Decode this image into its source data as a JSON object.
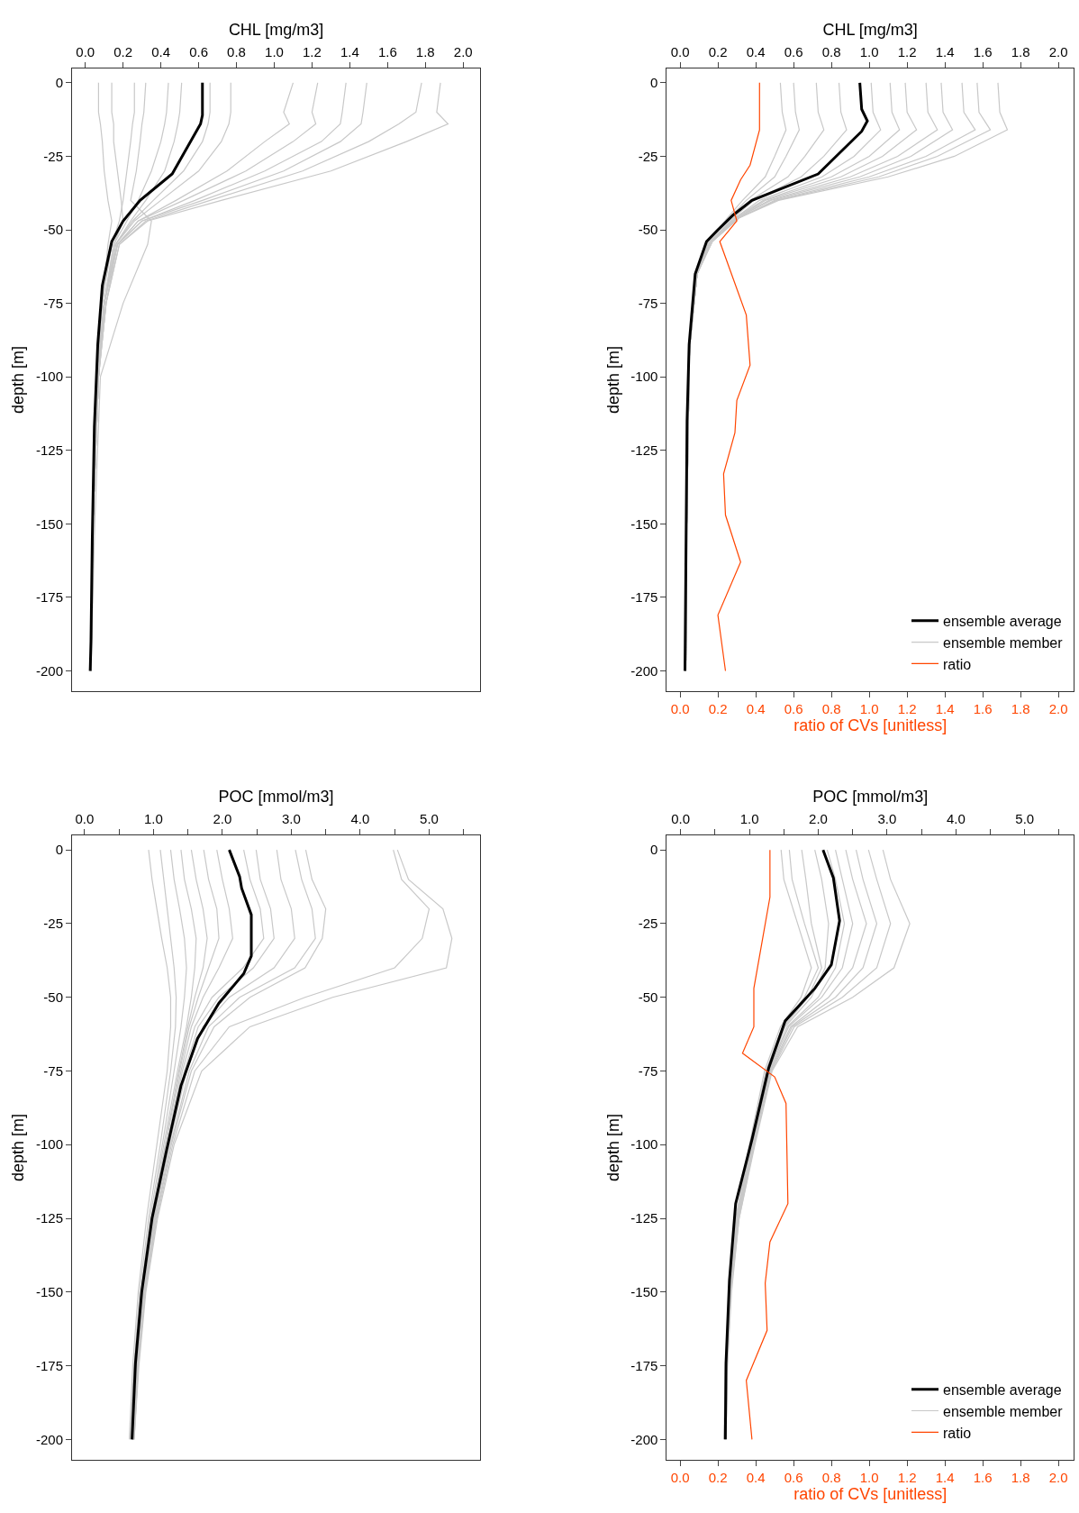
{
  "chart_data": [
    {
      "type": "line",
      "xlabel": "CHL [mg/m3]",
      "ylabel": "depth [m]",
      "xlim": [
        -0.07,
        2.09
      ],
      "ylim": [
        -207,
        5
      ],
      "legend": false,
      "line_style": "solid",
      "xticks": [
        {
          "value": 0,
          "label": "0.0"
        },
        0.2,
        0.4,
        0.6,
        0.8,
        {
          "value": 1,
          "label": "1.0"
        },
        1.2,
        1.4,
        1.6,
        1.8,
        {
          "value": 2,
          "label": "2.0"
        }
      ],
      "yticks": [
        0,
        -25,
        -50,
        -75,
        -100,
        -125,
        -150,
        -175,
        -200
      ],
      "series": [
        {
          "color": "#c8c8c8",
          "x": [
            0.07,
            0.07,
            0.08,
            0.09,
            0.1,
            0.12,
            0.14,
            0.12,
            0.09,
            0.06,
            0.04,
            0.03
          ],
          "values": [
            0,
            -10,
            -14,
            -20,
            -30,
            -40,
            -47,
            -55,
            -75,
            -100,
            -150,
            -200
          ]
        },
        {
          "color": "#c8c8c8",
          "x": [
            0.14,
            0.14,
            0.15,
            0.15,
            0.17,
            0.19,
            0.2,
            0.15,
            0.1,
            0.07,
            0.04,
            0.03
          ],
          "values": [
            0,
            -10,
            -14,
            -20,
            -30,
            -40,
            -47,
            -55,
            -75,
            -100,
            -150,
            -200
          ]
        },
        {
          "color": "#c8c8c8",
          "x": [
            0.26,
            0.26,
            0.25,
            0.24,
            0.22,
            0.2,
            0.18,
            0.14,
            0.09,
            0.06,
            0.04,
            0.03
          ],
          "values": [
            0,
            -10,
            -14,
            -20,
            -30,
            -40,
            -47,
            -55,
            -75,
            -100,
            -150,
            -200
          ]
        },
        {
          "color": "#c8c8c8",
          "x": [
            0.32,
            0.31,
            0.3,
            0.29,
            0.27,
            0.24,
            0.35,
            0.33,
            0.2,
            0.08,
            0.05,
            0.03
          ],
          "values": [
            0,
            -10,
            -14,
            -20,
            -30,
            -40,
            -47,
            -55,
            -75,
            -100,
            -150,
            -200
          ]
        },
        {
          "color": "#c8c8c8",
          "x": [
            0.44,
            0.43,
            0.42,
            0.4,
            0.35,
            0.28,
            0.22,
            0.15,
            0.1,
            0.06,
            0.04,
            0.03
          ],
          "values": [
            0,
            -10,
            -14,
            -20,
            -30,
            -40,
            -47,
            -55,
            -75,
            -100,
            -150,
            -200
          ]
        },
        {
          "color": "#c8c8c8",
          "x": [
            0.51,
            0.5,
            0.49,
            0.47,
            0.42,
            0.32,
            0.24,
            0.16,
            0.1,
            0.06,
            0.04,
            0.03
          ],
          "values": [
            0,
            -10,
            -14,
            -20,
            -30,
            -40,
            -47,
            -55,
            -75,
            -100,
            -150,
            -200
          ]
        },
        {
          "color": "#c8c8c8",
          "x": [
            0.66,
            0.66,
            0.65,
            0.62,
            0.52,
            0.36,
            0.25,
            0.16,
            0.1,
            0.07,
            0.04,
            0.03
          ],
          "values": [
            0,
            -10,
            -14,
            -20,
            -30,
            -40,
            -47,
            -55,
            -75,
            -100,
            -150,
            -200
          ]
        },
        {
          "color": "#c8c8c8",
          "x": [
            0.77,
            0.77,
            0.76,
            0.72,
            0.6,
            0.4,
            0.26,
            0.16,
            0.1,
            0.07,
            0.04,
            0.03
          ],
          "values": [
            0,
            -10,
            -14,
            -20,
            -30,
            -40,
            -47,
            -55,
            -75,
            -100,
            -150,
            -200
          ]
        },
        {
          "color": "#c8c8c8",
          "x": [
            1.1,
            1.05,
            1.08,
            0.95,
            0.75,
            0.48,
            0.28,
            0.17,
            0.1,
            0.07,
            0.04,
            0.03
          ],
          "values": [
            0,
            -10,
            -14,
            -20,
            -30,
            -40,
            -47,
            -55,
            -75,
            -100,
            -150,
            -200
          ]
        },
        {
          "color": "#c8c8c8",
          "x": [
            1.23,
            1.2,
            1.22,
            1.1,
            0.85,
            0.52,
            0.28,
            0.17,
            0.1,
            0.07,
            0.04,
            0.03
          ],
          "values": [
            0,
            -10,
            -14,
            -20,
            -30,
            -40,
            -47,
            -55,
            -75,
            -100,
            -150,
            -200
          ]
        },
        {
          "color": "#c8c8c8",
          "x": [
            1.38,
            1.36,
            1.35,
            1.25,
            0.95,
            0.58,
            0.3,
            0.17,
            0.1,
            0.07,
            0.04,
            0.03
          ],
          "values": [
            0,
            -10,
            -14,
            -20,
            -30,
            -40,
            -47,
            -55,
            -75,
            -100,
            -150,
            -200
          ]
        },
        {
          "color": "#c8c8c8",
          "x": [
            1.49,
            1.47,
            1.46,
            1.35,
            1.05,
            0.62,
            0.3,
            0.17,
            0.11,
            0.07,
            0.04,
            0.03
          ],
          "values": [
            0,
            -10,
            -14,
            -20,
            -30,
            -40,
            -47,
            -55,
            -75,
            -100,
            -150,
            -200
          ]
        },
        {
          "color": "#c8c8c8",
          "x": [
            1.78,
            1.75,
            1.66,
            1.5,
            1.15,
            0.66,
            0.32,
            0.18,
            0.11,
            0.07,
            0.04,
            0.03
          ],
          "values": [
            0,
            -10,
            -14,
            -20,
            -30,
            -40,
            -47,
            -55,
            -75,
            -100,
            -150,
            -200
          ]
        },
        {
          "color": "#c8c8c8",
          "x": [
            1.88,
            1.86,
            1.92,
            1.7,
            1.3,
            0.72,
            0.33,
            0.18,
            0.11,
            0.07,
            0.04,
            0.03
          ],
          "values": [
            0,
            -10,
            -14,
            -20,
            -30,
            -40,
            -47,
            -55,
            -75,
            -100,
            -150,
            -200
          ]
        },
        {
          "color": "#000000",
          "x": [
            0.62,
            0.62,
            0.61,
            0.46,
            0.29,
            0.2,
            0.14,
            0.09,
            0.066,
            0.048,
            0.037,
            0.03,
            0.026
          ],
          "values": [
            0,
            -11,
            -14,
            -31,
            -40,
            -47,
            -54,
            -69,
            -89,
            -117,
            -155,
            -190,
            -200
          ]
        }
      ]
    },
    {
      "type": "line",
      "xlabel": "CHL [mg/m3]",
      "ylabel": "depth [m]",
      "x2label": "ratio of CVs [unitless]",
      "xlim": [
        -0.07,
        2.08
      ],
      "ylim": [
        -207,
        5
      ],
      "x2lim": [
        -0.07,
        2.08
      ],
      "legend": "bottom right",
      "line_style": "solid",
      "xticks": [
        {
          "value": 0,
          "label": "0.0"
        },
        0.2,
        0.4,
        0.6,
        0.8,
        {
          "value": 1,
          "label": "1.0"
        },
        1.2,
        1.4,
        1.6,
        1.8,
        {
          "value": 2,
          "label": "2.0"
        }
      ],
      "x2ticks": [
        {
          "value": 0,
          "label": "0.0"
        },
        0.2,
        0.4,
        0.6,
        0.8,
        {
          "value": 1,
          "label": "1.0"
        },
        1.2,
        1.4,
        1.6,
        1.8,
        {
          "value": 2,
          "label": "2.0"
        }
      ],
      "yticks": [
        0,
        -25,
        -50,
        -75,
        -100,
        -125,
        -150,
        -175,
        -200
      ],
      "series": [
        {
          "name": "ensemble member",
          "color": "#c8c8c8",
          "x": [
            0.53,
            0.54,
            0.56,
            0.5,
            0.45,
            0.33,
            0.25,
            0.15,
            0.09,
            0.05,
            0.035,
            0.03
          ],
          "values": [
            0,
            -10,
            -16,
            -25,
            -32,
            -40,
            -46,
            -54,
            -65,
            -90,
            -150,
            -200
          ]
        },
        {
          "color": "#c8c8c8",
          "x": [
            0.6,
            0.61,
            0.63,
            0.56,
            0.5,
            0.35,
            0.26,
            0.15,
            0.09,
            0.05,
            0.035,
            0.03
          ],
          "values": [
            0,
            -10,
            -16,
            -25,
            -32,
            -40,
            -46,
            -54,
            -65,
            -90,
            -150,
            -200
          ]
        },
        {
          "color": "#c8c8c8",
          "x": [
            0.72,
            0.73,
            0.76,
            0.66,
            0.57,
            0.37,
            0.27,
            0.15,
            0.09,
            0.05,
            0.035,
            0.03
          ],
          "values": [
            0,
            -10,
            -16,
            -25,
            -32,
            -40,
            -46,
            -54,
            -65,
            -90,
            -150,
            -200
          ]
        },
        {
          "color": "#c8c8c8",
          "x": [
            0.84,
            0.85,
            0.88,
            0.76,
            0.64,
            0.39,
            0.28,
            0.16,
            0.09,
            0.05,
            0.035,
            0.03
          ],
          "values": [
            0,
            -10,
            -16,
            -25,
            -32,
            -40,
            -46,
            -54,
            -65,
            -90,
            -150,
            -200
          ]
        },
        {
          "color": "#c8c8c8",
          "x": [
            1.01,
            1.02,
            1.06,
            0.92,
            0.75,
            0.42,
            0.29,
            0.16,
            0.09,
            0.05,
            0.035,
            0.03
          ],
          "values": [
            0,
            -10,
            -16,
            -25,
            -32,
            -40,
            -46,
            -54,
            -65,
            -90,
            -150,
            -200
          ]
        },
        {
          "color": "#c8c8c8",
          "x": [
            1.11,
            1.12,
            1.16,
            1.0,
            0.8,
            0.44,
            0.29,
            0.16,
            0.09,
            0.05,
            0.035,
            0.03
          ],
          "values": [
            0,
            -10,
            -16,
            -25,
            -32,
            -40,
            -46,
            -54,
            -65,
            -90,
            -150,
            -200
          ]
        },
        {
          "color": "#c8c8c8",
          "x": [
            1.19,
            1.2,
            1.25,
            1.07,
            0.85,
            0.45,
            0.3,
            0.16,
            0.09,
            0.05,
            0.035,
            0.03
          ],
          "values": [
            0,
            -10,
            -16,
            -25,
            -32,
            -40,
            -46,
            -54,
            -65,
            -90,
            -150,
            -200
          ]
        },
        {
          "color": "#c8c8c8",
          "x": [
            1.3,
            1.31,
            1.36,
            1.15,
            0.9,
            0.47,
            0.3,
            0.16,
            0.09,
            0.05,
            0.035,
            0.03
          ],
          "values": [
            0,
            -10,
            -16,
            -25,
            -32,
            -40,
            -46,
            -54,
            -65,
            -90,
            -150,
            -200
          ]
        },
        {
          "color": "#c8c8c8",
          "x": [
            1.38,
            1.39,
            1.44,
            1.22,
            0.95,
            0.48,
            0.3,
            0.16,
            0.09,
            0.05,
            0.035,
            0.03
          ],
          "values": [
            0,
            -10,
            -16,
            -25,
            -32,
            -40,
            -46,
            -54,
            -65,
            -90,
            -150,
            -200
          ]
        },
        {
          "color": "#c8c8c8",
          "x": [
            1.49,
            1.5,
            1.56,
            1.3,
            1.0,
            0.5,
            0.31,
            0.17,
            0.09,
            0.05,
            0.035,
            0.03
          ],
          "values": [
            0,
            -10,
            -16,
            -25,
            -32,
            -40,
            -46,
            -54,
            -65,
            -90,
            -150,
            -200
          ]
        },
        {
          "color": "#c8c8c8",
          "x": [
            1.57,
            1.58,
            1.64,
            1.36,
            1.05,
            0.51,
            0.31,
            0.17,
            0.09,
            0.05,
            0.035,
            0.03
          ],
          "values": [
            0,
            -10,
            -16,
            -25,
            -32,
            -40,
            -46,
            -54,
            -65,
            -90,
            -150,
            -200
          ]
        },
        {
          "color": "#c8c8c8",
          "x": [
            1.68,
            1.69,
            1.73,
            1.45,
            1.1,
            0.52,
            0.31,
            0.17,
            0.09,
            0.05,
            0.035,
            0.03
          ],
          "values": [
            0,
            -10,
            -16,
            -25,
            -32,
            -40,
            -46,
            -54,
            -65,
            -90,
            -150,
            -200
          ]
        },
        {
          "name": "ensemble average",
          "color": "#000000",
          "x": [
            0.95,
            0.96,
            0.99,
            0.96,
            0.73,
            0.38,
            0.28,
            0.2,
            0.14,
            0.08,
            0.048,
            0.037,
            0.026
          ],
          "values": [
            0,
            -9,
            -13,
            -16.5,
            -31,
            -40,
            -45,
            -50,
            -54,
            -65,
            -89,
            -115,
            -200
          ]
        },
        {
          "name": "ratio",
          "color": "#ff4500",
          "axis": "x2",
          "x": [
            0.42,
            0.42,
            0.37,
            0.32,
            0.27,
            0.3,
            0.21,
            0.35,
            0.37,
            0.3,
            0.29,
            0.23,
            0.24,
            0.32,
            0.2,
            0.24
          ],
          "values": [
            0,
            -16,
            -28,
            -33,
            -40,
            -47,
            -54,
            -79,
            -96,
            -108,
            -119,
            -133,
            -147,
            -163,
            -181,
            -200
          ]
        }
      ]
    },
    {
      "type": "line",
      "xlabel": "POC [mmol/m3]",
      "ylabel": "depth [m]",
      "xlim": [
        -0.18,
        5.74
      ],
      "ylim": [
        -207,
        5
      ],
      "legend": false,
      "line_style": "solid",
      "xticks": [
        {
          "value": 0,
          "label": "0.0"
        },
        {
          "value": 0.5,
          "label": null
        },
        {
          "value": 1,
          "label": "1.0"
        },
        {
          "value": 1.5,
          "label": null
        },
        {
          "value": 2,
          "label": "2.0"
        },
        {
          "value": 2.5,
          "label": null
        },
        {
          "value": 3,
          "label": "3.0"
        },
        {
          "value": 3.5,
          "label": null
        },
        {
          "value": 4,
          "label": "4.0"
        },
        {
          "value": 4.5,
          "label": null
        },
        {
          "value": 5,
          "label": "5.0"
        },
        {
          "value": 5.5,
          "label": null
        }
      ],
      "yticks": [
        0,
        -25,
        -50,
        -75,
        -100,
        -125,
        -150,
        -175,
        -200
      ],
      "series": [
        {
          "color": "#c8c8c8",
          "x": [
            0.93,
            0.98,
            1.05,
            1.12,
            1.2,
            1.25,
            1.25,
            1.2,
            1.05,
            0.9,
            0.78,
            0.7,
            0.65
          ],
          "values": [
            0,
            -10,
            -20,
            -30,
            -40,
            -50,
            -60,
            -75,
            -100,
            -125,
            -150,
            -175,
            -200
          ]
        },
        {
          "color": "#c8c8c8",
          "x": [
            1.1,
            1.15,
            1.2,
            1.25,
            1.3,
            1.33,
            1.32,
            1.25,
            1.1,
            0.93,
            0.8,
            0.72,
            0.66
          ],
          "values": [
            0,
            -10,
            -20,
            -30,
            -40,
            -50,
            -60,
            -75,
            -100,
            -125,
            -150,
            -175,
            -200
          ]
        },
        {
          "color": "#c8c8c8",
          "x": [
            1.25,
            1.3,
            1.38,
            1.45,
            1.48,
            1.45,
            1.4,
            1.3,
            1.13,
            0.95,
            0.82,
            0.73,
            0.67
          ],
          "values": [
            0,
            -10,
            -20,
            -30,
            -40,
            -50,
            -60,
            -75,
            -100,
            -125,
            -150,
            -175,
            -200
          ]
        },
        {
          "color": "#c8c8c8",
          "x": [
            1.4,
            1.45,
            1.55,
            1.62,
            1.6,
            1.55,
            1.48,
            1.35,
            1.15,
            0.97,
            0.83,
            0.74,
            0.68
          ],
          "values": [
            0,
            -10,
            -20,
            -30,
            -40,
            -50,
            -60,
            -75,
            -100,
            -125,
            -150,
            -175,
            -200
          ]
        },
        {
          "color": "#c8c8c8",
          "x": [
            1.55,
            1.62,
            1.72,
            1.78,
            1.72,
            1.6,
            1.5,
            1.37,
            1.17,
            0.98,
            0.84,
            0.75,
            0.69
          ],
          "values": [
            0,
            -10,
            -20,
            -30,
            -40,
            -50,
            -60,
            -75,
            -100,
            -125,
            -150,
            -175,
            -200
          ]
        },
        {
          "color": "#c8c8c8",
          "x": [
            1.73,
            1.8,
            1.92,
            1.95,
            1.8,
            1.65,
            1.52,
            1.38,
            1.18,
            0.99,
            0.85,
            0.76,
            0.7
          ],
          "values": [
            0,
            -10,
            -20,
            -30,
            -40,
            -50,
            -60,
            -75,
            -100,
            -125,
            -150,
            -175,
            -200
          ]
        },
        {
          "color": "#c8c8c8",
          "x": [
            1.92,
            2.0,
            2.1,
            2.15,
            1.95,
            1.72,
            1.55,
            1.4,
            1.2,
            1.0,
            0.85,
            0.76,
            0.7
          ],
          "values": [
            0,
            -10,
            -20,
            -30,
            -40,
            -50,
            -60,
            -75,
            -100,
            -125,
            -150,
            -175,
            -200
          ]
        },
        {
          "color": "#c8c8c8",
          "x": [
            2.31,
            2.4,
            2.55,
            2.6,
            2.3,
            1.85,
            1.6,
            1.42,
            1.21,
            1.0,
            0.86,
            0.77,
            0.7
          ],
          "values": [
            0,
            -10,
            -20,
            -30,
            -40,
            -50,
            -60,
            -75,
            -100,
            -125,
            -150,
            -175,
            -200
          ]
        },
        {
          "color": "#c8c8c8",
          "x": [
            2.49,
            2.55,
            2.7,
            2.75,
            2.45,
            1.95,
            1.65,
            1.45,
            1.22,
            1.01,
            0.86,
            0.77,
            0.71
          ],
          "values": [
            0,
            -10,
            -20,
            -30,
            -40,
            -50,
            -60,
            -75,
            -100,
            -125,
            -150,
            -175,
            -200
          ]
        },
        {
          "color": "#c8c8c8",
          "x": [
            2.79,
            2.85,
            3.0,
            3.05,
            2.75,
            2.1,
            1.72,
            1.48,
            1.23,
            1.02,
            0.87,
            0.77,
            0.71
          ],
          "values": [
            0,
            -10,
            -20,
            -30,
            -40,
            -50,
            -60,
            -75,
            -100,
            -125,
            -150,
            -175,
            -200
          ]
        },
        {
          "color": "#c8c8c8",
          "x": [
            3.06,
            3.15,
            3.3,
            3.35,
            3.05,
            2.25,
            1.8,
            1.52,
            1.25,
            1.03,
            0.87,
            0.78,
            0.71
          ],
          "values": [
            0,
            -10,
            -20,
            -30,
            -40,
            -50,
            -60,
            -75,
            -100,
            -125,
            -150,
            -175,
            -200
          ]
        },
        {
          "color": "#c8c8c8",
          "x": [
            3.21,
            3.3,
            3.5,
            3.45,
            3.2,
            2.4,
            1.88,
            1.55,
            1.26,
            1.04,
            0.88,
            0.78,
            0.72
          ],
          "values": [
            0,
            -10,
            -20,
            -30,
            -40,
            -50,
            -60,
            -75,
            -100,
            -125,
            -150,
            -175,
            -200
          ]
        },
        {
          "color": "#c8c8c8",
          "x": [
            4.48,
            4.6,
            5.0,
            4.9,
            4.5,
            3.2,
            2.1,
            1.6,
            1.28,
            1.05,
            0.88,
            0.78,
            0.72
          ],
          "values": [
            0,
            -10,
            -20,
            -30,
            -40,
            -50,
            -60,
            -75,
            -100,
            -125,
            -150,
            -175,
            -200
          ]
        },
        {
          "color": "#c8c8c8",
          "x": [
            4.54,
            4.7,
            5.2,
            5.33,
            5.25,
            3.6,
            2.4,
            1.7,
            1.3,
            1.06,
            0.89,
            0.79,
            0.72
          ],
          "values": [
            0,
            -10,
            -20,
            -30,
            -40,
            -50,
            -60,
            -75,
            -100,
            -125,
            -150,
            -175,
            -200
          ]
        },
        {
          "color": "#000000",
          "x": [
            2.1,
            2.25,
            2.28,
            2.42,
            2.42,
            2.31,
            1.95,
            1.64,
            1.4,
            1.19,
            0.98,
            0.83,
            0.74,
            0.69
          ],
          "values": [
            0,
            -9,
            -13,
            -22,
            -36,
            -42,
            -52,
            -64,
            -80,
            -102,
            -125,
            -150,
            -174,
            -200
          ]
        }
      ]
    },
    {
      "type": "line",
      "xlabel": "POC [mmol/m3]",
      "ylabel": "depth [m]",
      "x2label": "ratio of CVs [unitless]",
      "xlim": [
        -0.2,
        5.71
      ],
      "ylim": [
        -207,
        5
      ],
      "x2lim": [
        -0.07,
        2.08
      ],
      "legend": "bottom right",
      "line_style": "solid",
      "xticks": [
        {
          "value": 0,
          "label": "0.0"
        },
        {
          "value": 0.5,
          "label": null
        },
        {
          "value": 1,
          "label": "1.0"
        },
        {
          "value": 1.5,
          "label": null
        },
        {
          "value": 2,
          "label": "2.0"
        },
        {
          "value": 2.5,
          "label": null
        },
        {
          "value": 3,
          "label": "3.0"
        },
        {
          "value": 3.5,
          "label": null
        },
        {
          "value": 4,
          "label": "4.0"
        },
        {
          "value": 4.5,
          "label": null
        },
        {
          "value": 5,
          "label": "5.0"
        },
        {
          "value": 5.5,
          "label": null
        }
      ],
      "x2ticks": [
        {
          "value": 0,
          "label": "0.0"
        },
        0.2,
        0.4,
        0.6,
        0.8,
        {
          "value": 1,
          "label": "1.0"
        },
        1.2,
        1.4,
        1.6,
        1.8,
        {
          "value": 2,
          "label": "2.0"
        }
      ],
      "yticks": [
        0,
        -25,
        -50,
        -75,
        -100,
        -125,
        -150,
        -175,
        -200
      ],
      "series": [
        {
          "name": "ensemble member",
          "color": "#c8c8c8",
          "x": [
            1.46,
            1.5,
            1.7,
            1.9,
            1.75,
            1.45,
            1.22,
            1.0,
            0.8,
            0.7,
            0.65,
            0.63
          ],
          "values": [
            0,
            -10,
            -25,
            -40,
            -50,
            -60,
            -75,
            -100,
            -125,
            -150,
            -175,
            -200
          ]
        },
        {
          "color": "#c8c8c8",
          "x": [
            1.58,
            1.62,
            1.8,
            2.0,
            1.8,
            1.48,
            1.24,
            1.01,
            0.81,
            0.71,
            0.66,
            0.64
          ],
          "values": [
            0,
            -10,
            -25,
            -40,
            -50,
            -60,
            -75,
            -100,
            -125,
            -150,
            -175,
            -200
          ]
        },
        {
          "color": "#c8c8c8",
          "x": [
            1.76,
            1.82,
            1.9,
            2.05,
            1.85,
            1.5,
            1.26,
            1.02,
            0.82,
            0.71,
            0.66,
            0.64
          ],
          "values": [
            0,
            -10,
            -25,
            -40,
            -50,
            -60,
            -75,
            -100,
            -125,
            -150,
            -175,
            -200
          ]
        },
        {
          "color": "#c8c8c8",
          "x": [
            1.95,
            2.05,
            2.15,
            2.1,
            1.9,
            1.52,
            1.27,
            1.03,
            0.82,
            0.72,
            0.66,
            0.65
          ],
          "values": [
            0,
            -10,
            -25,
            -40,
            -50,
            -60,
            -75,
            -100,
            -125,
            -150,
            -175,
            -200
          ]
        },
        {
          "color": "#c8c8c8",
          "x": [
            2.13,
            2.25,
            2.38,
            2.25,
            2.0,
            1.55,
            1.28,
            1.04,
            0.83,
            0.72,
            0.67,
            0.65
          ],
          "values": [
            0,
            -10,
            -25,
            -40,
            -50,
            -60,
            -75,
            -100,
            -125,
            -150,
            -175,
            -200
          ]
        },
        {
          "color": "#c8c8c8",
          "x": [
            2.25,
            2.35,
            2.5,
            2.35,
            2.05,
            1.57,
            1.29,
            1.05,
            0.83,
            0.72,
            0.67,
            0.65
          ],
          "values": [
            0,
            -10,
            -25,
            -40,
            -50,
            -60,
            -75,
            -100,
            -125,
            -150,
            -175,
            -200
          ]
        },
        {
          "color": "#c8c8c8",
          "x": [
            2.4,
            2.5,
            2.7,
            2.5,
            2.15,
            1.6,
            1.3,
            1.06,
            0.84,
            0.73,
            0.67,
            0.66
          ],
          "values": [
            0,
            -10,
            -25,
            -40,
            -50,
            -60,
            -75,
            -100,
            -125,
            -150,
            -175,
            -200
          ]
        },
        {
          "color": "#c8c8c8",
          "x": [
            2.55,
            2.65,
            2.85,
            2.65,
            2.25,
            1.62,
            1.31,
            1.06,
            0.84,
            0.73,
            0.67,
            0.66
          ],
          "values": [
            0,
            -10,
            -25,
            -40,
            -50,
            -60,
            -75,
            -100,
            -125,
            -150,
            -175,
            -200
          ]
        },
        {
          "color": "#c8c8c8",
          "x": [
            2.73,
            2.85,
            3.05,
            2.85,
            2.35,
            1.65,
            1.32,
            1.07,
            0.85,
            0.73,
            0.68,
            0.66
          ],
          "values": [
            0,
            -10,
            -25,
            -40,
            -50,
            -60,
            -75,
            -100,
            -125,
            -150,
            -175,
            -200
          ]
        },
        {
          "color": "#c8c8c8",
          "x": [
            2.94,
            3.05,
            3.33,
            3.1,
            2.5,
            1.7,
            1.33,
            1.08,
            0.85,
            0.74,
            0.68,
            0.66
          ],
          "values": [
            0,
            -10,
            -25,
            -40,
            -50,
            -60,
            -75,
            -100,
            -125,
            -150,
            -175,
            -200
          ]
        },
        {
          "name": "ensemble average",
          "color": "#000000",
          "x": [
            2.07,
            2.22,
            2.31,
            2.19,
            1.95,
            1.52,
            1.28,
            1.04,
            0.8,
            0.71,
            0.66,
            0.65
          ],
          "values": [
            0,
            -9.5,
            -24,
            -39,
            -47,
            -58,
            -74,
            -98,
            -120,
            -146,
            -174,
            -200
          ]
        },
        {
          "name": "ratio",
          "color": "#ff4500",
          "axis": "x2",
          "x": [
            0.475,
            0.475,
            0.39,
            0.39,
            0.33,
            0.5,
            0.56,
            0.57,
            0.475,
            0.45,
            0.46,
            0.35,
            0.38
          ],
          "values": [
            0,
            -16,
            -47,
            -60,
            -69,
            -77,
            -86,
            -120,
            -133,
            -147,
            -163,
            -180,
            -200
          ]
        }
      ]
    }
  ]
}
